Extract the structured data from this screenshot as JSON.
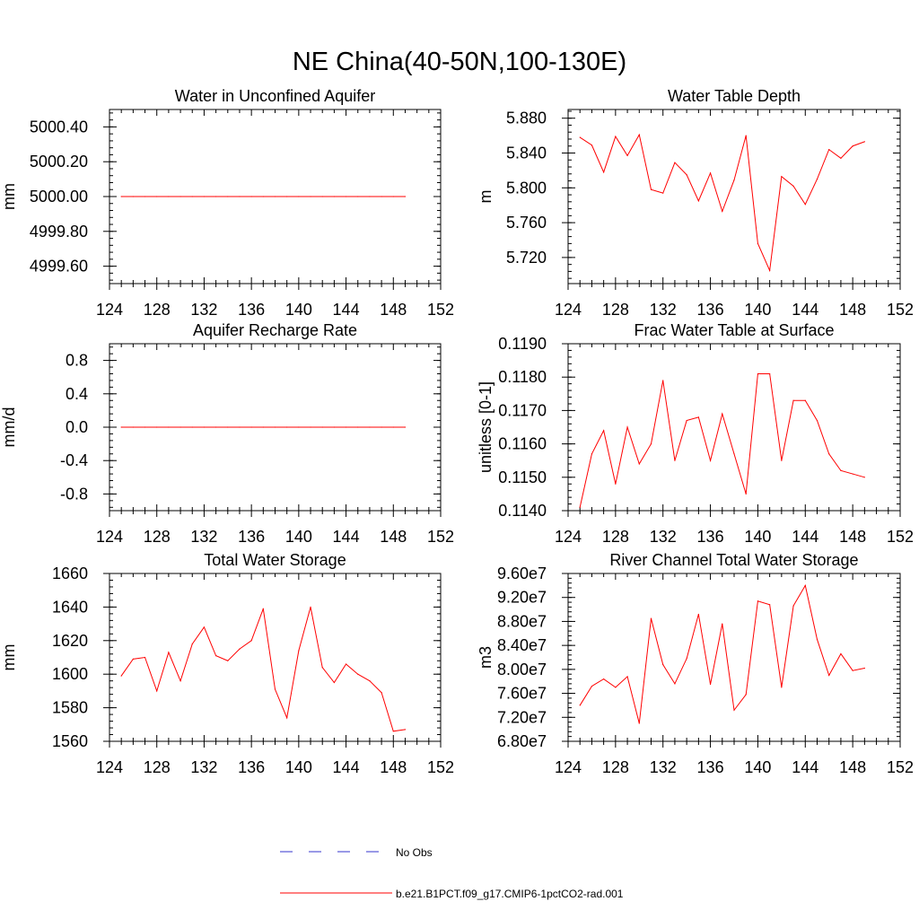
{
  "title": "NE China(40-50N,100-130E)",
  "chart_data": [
    {
      "type": "line",
      "title": "Water in Unconfined Aquifer",
      "ylabel": "mm",
      "xlim": [
        124,
        152
      ],
      "ylim": [
        4999.5,
        5000.5
      ],
      "x_ticks": [
        "124",
        "128",
        "132",
        "136",
        "140",
        "144",
        "148",
        "152"
      ],
      "y_ticks": [
        "4999.60",
        "4999.80",
        "5000.00",
        "5000.20",
        "5000.40"
      ],
      "series": [
        {
          "x": [
            125,
            126,
            127,
            128,
            129,
            130,
            131,
            132,
            133,
            134,
            135,
            136,
            137,
            138,
            139,
            140,
            141,
            142,
            143,
            144,
            145,
            146,
            147,
            148,
            149
          ],
          "values": [
            5000,
            5000,
            5000,
            5000,
            5000,
            5000,
            5000,
            5000,
            5000,
            5000,
            5000,
            5000,
            5000,
            5000,
            5000,
            5000,
            5000,
            5000,
            5000,
            5000,
            5000,
            5000,
            5000,
            5000,
            5000
          ]
        }
      ]
    },
    {
      "type": "line",
      "title": "Water Table Depth",
      "ylabel": "m",
      "xlim": [
        124,
        152
      ],
      "ylim": [
        5.69,
        5.89
      ],
      "x_ticks": [
        "124",
        "128",
        "132",
        "136",
        "140",
        "144",
        "148",
        "152"
      ],
      "y_ticks": [
        "5.720",
        "5.760",
        "5.800",
        "5.840",
        "5.880"
      ],
      "series": [
        {
          "x": [
            125,
            126,
            127,
            128,
            129,
            130,
            131,
            132,
            133,
            134,
            135,
            136,
            137,
            138,
            139,
            140,
            141,
            142,
            143,
            144,
            145,
            146,
            147,
            148,
            149
          ],
          "values": [
            5.858,
            5.849,
            5.818,
            5.859,
            5.837,
            5.861,
            5.798,
            5.794,
            5.829,
            5.815,
            5.785,
            5.817,
            5.773,
            5.809,
            5.86,
            5.736,
            5.705,
            5.813,
            5.802,
            5.781,
            5.81,
            5.844,
            5.834,
            5.848,
            5.853
          ]
        }
      ]
    },
    {
      "type": "line",
      "title": "Aquifer Recharge Rate",
      "ylabel": "mm/d",
      "xlim": [
        124,
        152
      ],
      "ylim": [
        -1.0,
        1.0
      ],
      "x_ticks": [
        "124",
        "128",
        "132",
        "136",
        "140",
        "144",
        "148",
        "152"
      ],
      "y_ticks": [
        "-0.8",
        "-0.4",
        "0.0",
        "0.4",
        "0.8"
      ],
      "series": [
        {
          "x": [
            125,
            126,
            127,
            128,
            129,
            130,
            131,
            132,
            133,
            134,
            135,
            136,
            137,
            138,
            139,
            140,
            141,
            142,
            143,
            144,
            145,
            146,
            147,
            148,
            149
          ],
          "values": [
            0,
            0,
            0,
            0,
            0,
            0,
            0,
            0,
            0,
            0,
            0,
            0,
            0,
            0,
            0,
            0,
            0,
            0,
            0,
            0,
            0,
            0,
            0,
            0,
            0
          ]
        }
      ]
    },
    {
      "type": "line",
      "title": "Frac Water Table at Surface",
      "ylabel": "unitless [0-1]",
      "xlim": [
        124,
        152
      ],
      "ylim": [
        0.114,
        0.119
      ],
      "x_ticks": [
        "124",
        "128",
        "132",
        "136",
        "140",
        "144",
        "148",
        "152"
      ],
      "y_ticks": [
        "0.1140",
        "0.1150",
        "0.1160",
        "0.1170",
        "0.1180",
        "0.1190"
      ],
      "series": [
        {
          "x": [
            125,
            126,
            127,
            128,
            129,
            130,
            131,
            132,
            133,
            134,
            135,
            136,
            137,
            138,
            139,
            140,
            141,
            142,
            143,
            144,
            145,
            146,
            147,
            148,
            149
          ],
          "values": [
            0.1141,
            0.1157,
            0.1164,
            0.1148,
            0.1165,
            0.1154,
            0.116,
            0.1179,
            0.1155,
            0.1167,
            0.1168,
            0.1155,
            0.1169,
            0.1157,
            0.1145,
            0.1181,
            0.1181,
            0.1155,
            0.1173,
            0.1173,
            0.1167,
            0.1157,
            0.1152,
            0.1151,
            0.115
          ]
        }
      ]
    },
    {
      "type": "line",
      "title": "Total Water Storage",
      "ylabel": "mm",
      "xlim": [
        124,
        152
      ],
      "ylim": [
        1560,
        1660
      ],
      "x_ticks": [
        "124",
        "128",
        "132",
        "136",
        "140",
        "144",
        "148",
        "152"
      ],
      "y_ticks": [
        "1560",
        "1580",
        "1600",
        "1620",
        "1640",
        "1660"
      ],
      "series": [
        {
          "x": [
            125,
            126,
            127,
            128,
            129,
            130,
            131,
            132,
            133,
            134,
            135,
            136,
            137,
            138,
            139,
            140,
            141,
            142,
            143,
            144,
            145,
            146,
            147,
            148,
            149
          ],
          "values": [
            1599,
            1609,
            1610,
            1590,
            1613,
            1596,
            1618,
            1628,
            1611,
            1608,
            1615,
            1620,
            1639,
            1591,
            1574,
            1614,
            1640,
            1604,
            1595,
            1606,
            1600,
            1596,
            1589,
            1566,
            1567
          ]
        }
      ]
    },
    {
      "type": "line",
      "title": "River Channel Total Water Storage",
      "ylabel": "m3",
      "xlim": [
        124,
        152
      ],
      "ylim": [
        68000000,
        96000000
      ],
      "x_ticks": [
        "124",
        "128",
        "132",
        "136",
        "140",
        "144",
        "148",
        "152"
      ],
      "y_ticks": [
        "6.80e7",
        "7.20e7",
        "7.60e7",
        "8.00e7",
        "8.40e7",
        "8.80e7",
        "9.20e7",
        "9.60e7"
      ],
      "series": [
        {
          "x": [
            125,
            126,
            127,
            128,
            129,
            130,
            131,
            132,
            133,
            134,
            135,
            136,
            137,
            138,
            139,
            140,
            141,
            142,
            143,
            144,
            145,
            146,
            147,
            148,
            149
          ],
          "values": [
            74000000,
            77200000,
            78400000,
            77000000,
            78800000,
            71000000,
            88500000,
            80800000,
            77600000,
            81800000,
            89200000,
            77500000,
            87600000,
            73200000,
            75800000,
            91400000,
            90800000,
            77000000,
            90600000,
            94000000,
            85000000,
            79000000,
            82600000,
            79800000,
            80200000
          ]
        }
      ]
    }
  ],
  "legend": [
    {
      "label": "No Obs",
      "style": "dashed",
      "color": "#3333cc"
    },
    {
      "label": "b.e21.B1PCT.f09_g17.CMIP6-1pctCO2-rad.001",
      "style": "solid",
      "color": "#ff0000"
    }
  ],
  "colors": {
    "line": "#ff0000",
    "obs": "#3333cc",
    "axes": "#000000"
  }
}
